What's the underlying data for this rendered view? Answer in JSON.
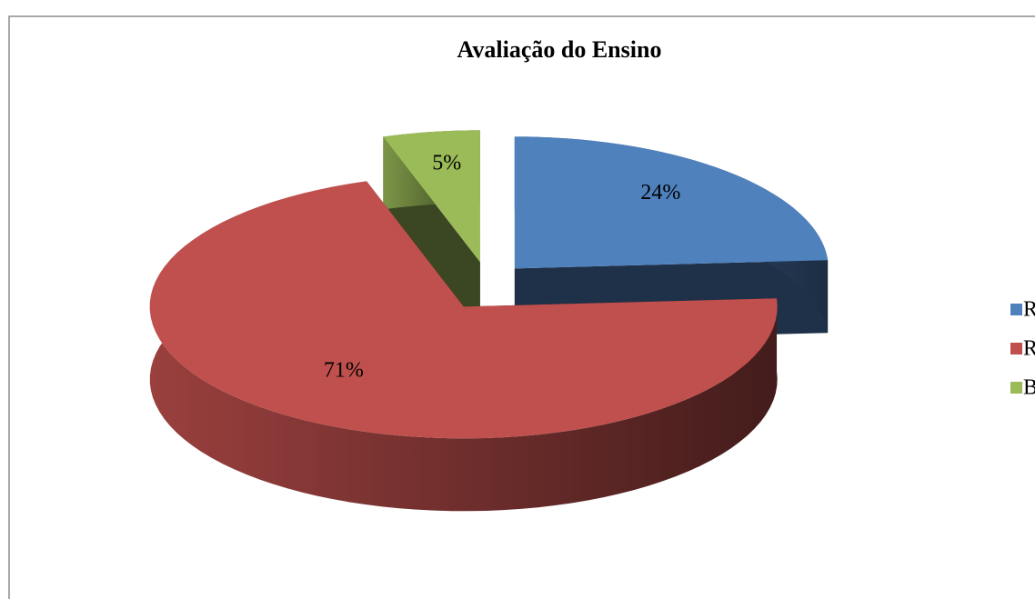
{
  "chart_data": {
    "type": "pie",
    "title": "Avaliação do Ensino",
    "categories": [
      "Ruim",
      "Regular",
      "Bom"
    ],
    "values": [
      24,
      71,
      5
    ],
    "value_labels": [
      "24%",
      "71%",
      "5%"
    ],
    "colors": [
      "#4f81bd",
      "#c0504d",
      "#9bbb59"
    ],
    "legend": "right"
  }
}
